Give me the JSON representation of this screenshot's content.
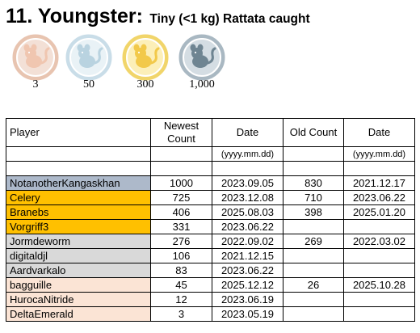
{
  "title": {
    "main": "11. Youngster:",
    "sub": "Tiny (<1 kg) Rattata caught"
  },
  "medals": [
    {
      "tier": "bronze",
      "label": "3",
      "ring": "#e8c4b0",
      "face": "#f3e0d6",
      "icon": "#f0c6b0"
    },
    {
      "tier": "silver",
      "label": "50",
      "ring": "#c9dde8",
      "face": "#e9f2f6",
      "icon": "#b9d3e0"
    },
    {
      "tier": "gold",
      "label": "300",
      "ring": "#f1d56a",
      "face": "#fcefb8",
      "icon": "#f2c94a"
    },
    {
      "tier": "platinum",
      "label": "1,000",
      "ring": "#a9b8c2",
      "face": "#d4dde3",
      "icon": "#6f8592"
    }
  ],
  "columns": {
    "player": "Player",
    "newest_count": "Newest Count",
    "date": "Date",
    "old_count": "Old Count",
    "old_date": "Date",
    "date_format": "(yyyy.mm.dd)",
    "old_date_format": "(yyyy.mm.dd)"
  },
  "rows": [
    {
      "player": "NotanotherKangaskhan",
      "newest": "1000",
      "date": "2023.09.05",
      "old": "830",
      "old_date": "2021.12.17",
      "color": "#adb9ca"
    },
    {
      "player": "Celery",
      "newest": "725",
      "date": "2023.12.08",
      "old": "710",
      "old_date": "2023.06.22",
      "color": "#ffc000"
    },
    {
      "player": "Branebs",
      "newest": "406",
      "date": "2025.08.03",
      "old": "398",
      "old_date": "2025.01.20",
      "color": "#ffc000"
    },
    {
      "player": "Vorgriff3",
      "newest": "331",
      "date": "2023.06.22",
      "old": "",
      "old_date": "",
      "color": "#ffc000"
    },
    {
      "player": "Jormdeworm",
      "newest": "276",
      "date": "2022.09.02",
      "old": "269",
      "old_date": "2022.03.02",
      "color": "#d9d9d9"
    },
    {
      "player": "digitaldjl",
      "newest": "106",
      "date": "2021.12.15",
      "old": "",
      "old_date": "",
      "color": "#d9d9d9"
    },
    {
      "player": "Aardvarkalo",
      "newest": "83",
      "date": "2023.06.22",
      "old": "",
      "old_date": "",
      "color": "#d9d9d9"
    },
    {
      "player": "bagguille",
      "newest": "45",
      "date": "2025.12.12",
      "old": "26",
      "old_date": "2025.10.28",
      "color": "#fbe4d5"
    },
    {
      "player": "HurocaNitride",
      "newest": "12",
      "date": "2023.06.19",
      "old": "",
      "old_date": "",
      "color": "#fbe4d5"
    },
    {
      "player": "DeltaEmerald",
      "newest": "3",
      "date": "2023.05.19",
      "old": "",
      "old_date": "",
      "color": "#fbe4d5"
    }
  ]
}
